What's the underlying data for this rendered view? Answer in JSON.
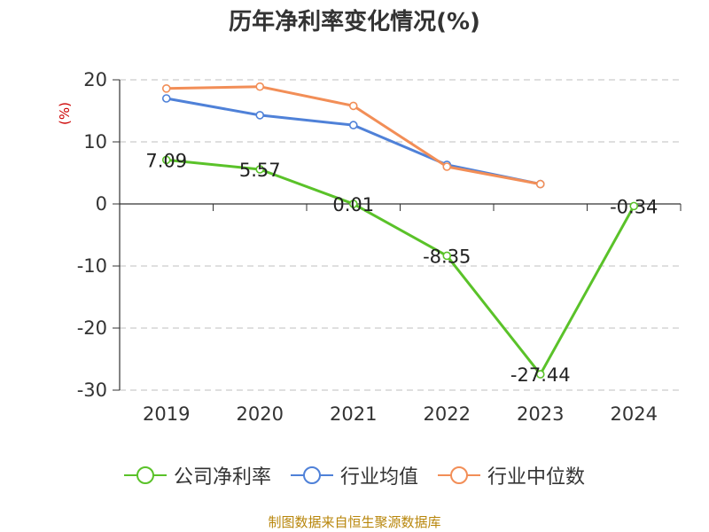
{
  "title": "历年净利率变化情况(%)",
  "source": "制图数据来自恒生聚源数据库",
  "chart_data": {
    "type": "line",
    "title": "历年净利率变化情况(%)",
    "ylabel": "(%)",
    "ylim": [
      -30,
      20
    ],
    "yticks": [
      -30,
      -20,
      -10,
      0,
      10,
      20
    ],
    "categories": [
      "2019",
      "2020",
      "2021",
      "2022",
      "2023",
      "2024"
    ],
    "grid": true,
    "legend_position": "bottom",
    "series": [
      {
        "name": "公司净利率",
        "color": "#5ac229",
        "values": [
          7.09,
          5.57,
          0.01,
          -8.35,
          -27.44,
          -0.34
        ],
        "labels": [
          "7.09",
          "5.57",
          "0.01",
          "-8.35",
          "-27.44",
          "-0.34"
        ]
      },
      {
        "name": "行业均值",
        "color": "#4f81d8",
        "values": [
          17.0,
          14.3,
          12.7,
          6.3,
          3.2,
          null
        ]
      },
      {
        "name": "行业中位数",
        "color": "#f28e57",
        "values": [
          18.6,
          18.9,
          15.8,
          6.0,
          3.2,
          null
        ]
      }
    ],
    "ylabel_color": "#cc0000"
  }
}
